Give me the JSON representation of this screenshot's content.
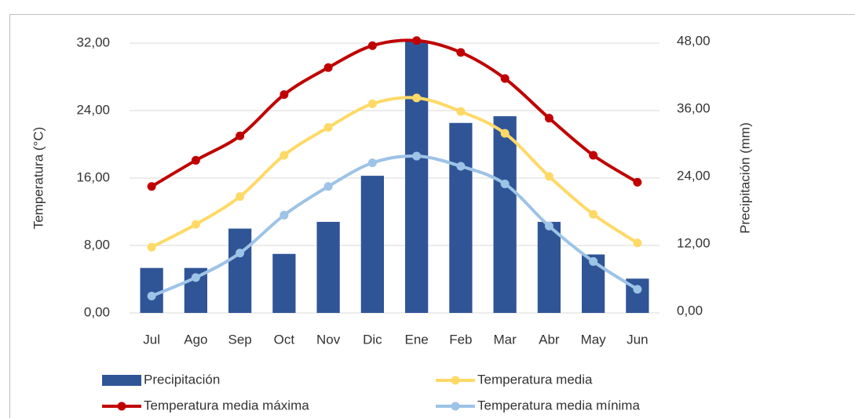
{
  "chart_data": {
    "type": "bar-line",
    "y_label": "Temperatura (°C)",
    "y2_label": "Precipitación (mm)",
    "categories": [
      "Jul",
      "Ago",
      "Sep",
      "Oct",
      "Nov",
      "Dic",
      "Ene",
      "Feb",
      "Mar",
      "Abr",
      "May",
      "Jun"
    ],
    "ylim": [
      0,
      32
    ],
    "yticks": [
      {
        "value": 0,
        "label": "0,00"
      },
      {
        "value": 8,
        "label": "8,00"
      },
      {
        "value": 16,
        "label": "16,00"
      },
      {
        "value": 24,
        "label": "24,00"
      },
      {
        "value": 32,
        "label": "32,00"
      }
    ],
    "y2lim": [
      0,
      48
    ],
    "y2ticks": [
      {
        "value": 0,
        "label": "0,00"
      },
      {
        "value": 12,
        "label": "12,00"
      },
      {
        "value": 24,
        "label": "24,00"
      },
      {
        "value": 36,
        "label": "36,00"
      },
      {
        "value": 48,
        "label": "48,00"
      }
    ],
    "grid": true,
    "series": [
      {
        "name": "Precipitación",
        "kind": "bar",
        "axis": "y2",
        "color": "#2f5597",
        "values": [
          8,
          8,
          15,
          10.5,
          16.2,
          24.4,
          48.3,
          33.8,
          35,
          16.2,
          10.4,
          6.1
        ]
      },
      {
        "name": "Temperatura media",
        "kind": "line",
        "color": "#ffd966",
        "values": [
          7.8,
          10.5,
          13.8,
          18.7,
          22,
          24.8,
          25.5,
          23.9,
          21.3,
          16.2,
          11.7,
          8.3
        ]
      },
      {
        "name": "Temperatura media máxima",
        "kind": "line",
        "color": "#c00000",
        "values": [
          15,
          18.1,
          21,
          25.9,
          29.1,
          31.7,
          32.3,
          30.9,
          27.8,
          23.1,
          18.7,
          15.5
        ]
      },
      {
        "name": "Temperatura media mínima",
        "kind": "line",
        "color": "#9dc3e6",
        "values": [
          2,
          4.2,
          7.1,
          11.6,
          15,
          17.8,
          18.6,
          17.4,
          15.3,
          10.3,
          6.1,
          2.8
        ]
      }
    ]
  }
}
